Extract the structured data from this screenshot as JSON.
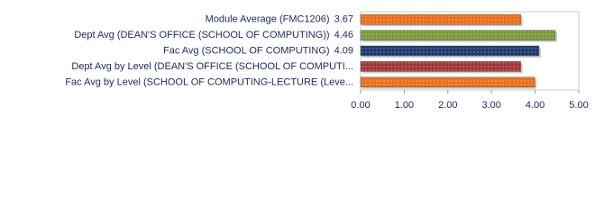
{
  "chart_data": {
    "type": "bar",
    "orientation": "horizontal",
    "categories": [
      "Module Average (FMC1206)",
      "Dept Avg (DEAN'S OFFICE (SCHOOL OF COMPUTING))",
      "Fac Avg (SCHOOL OF COMPUTING)",
      "Dept Avg by Level (DEAN'S OFFICE (SCHOOL OF COMPUTI...",
      "Fac Avg by Level (SCHOOL OF COMPUTING-LECTURE (Leve..."
    ],
    "values": [
      3.67,
      4.46,
      4.09,
      3.67,
      3.99
    ],
    "value_labels": [
      "3.67",
      "4.46",
      "4.09",
      null,
      null
    ],
    "colors": [
      "#e8711c",
      "#7b9a3c",
      "#1f3a6e",
      "#a0373a",
      "#e8711c"
    ],
    "xlim": [
      0,
      5
    ],
    "xticks": [
      {
        "value": 0,
        "label": "0.00"
      },
      {
        "value": 1,
        "label": "1.00"
      },
      {
        "value": 2,
        "label": "2.00"
      },
      {
        "value": 3,
        "label": "3.00"
      },
      {
        "value": 4,
        "label": "4.00"
      },
      {
        "value": 5,
        "label": "5.00"
      }
    ]
  }
}
